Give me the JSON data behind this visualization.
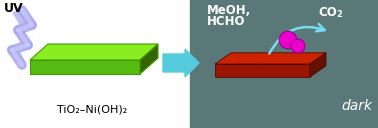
{
  "bg_left": "#ffffff",
  "bg_right": "#5a7878",
  "arrow_color": "#55ccdd",
  "uv_text": "UV",
  "label_bottom": "TiO₂–Ni(OH)₂",
  "label_meoh": "MeOH,",
  "label_hcho": "HCHO",
  "label_dark": "dark",
  "slab_top": "#88ee22",
  "slab_front": "#55bb11",
  "slab_right": "#336600",
  "red_slab_top": "#cc2200",
  "red_slab_front": "#991500",
  "red_slab_right": "#661000",
  "lightning_color": "#aaaaee",
  "lightning_color2": "#ccccff",
  "particle_color": "#ee00cc",
  "curve_arrow_color": "#77ddee",
  "fig_width": 3.78,
  "fig_height": 1.28,
  "dpi": 100
}
